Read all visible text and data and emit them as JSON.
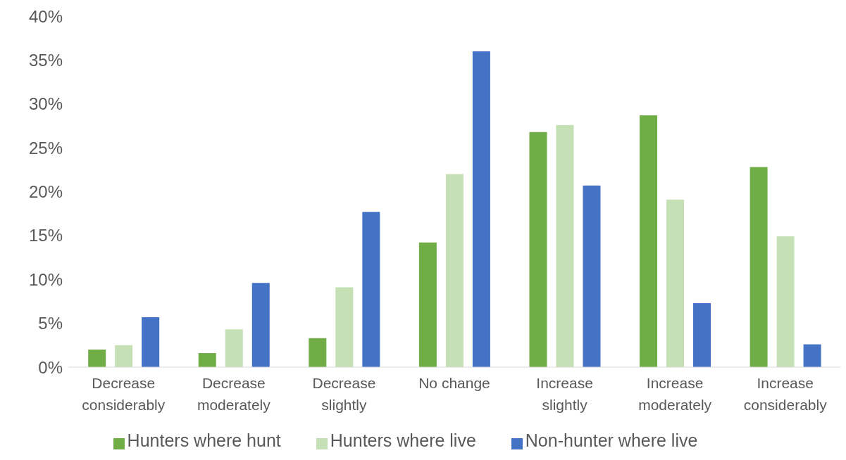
{
  "chart_data": {
    "type": "bar",
    "categories": [
      "Decrease considerably",
      "Decrease moderately",
      "Decrease slightly",
      "No change",
      "Increase slightly",
      "Increase moderately",
      "Increase considerably"
    ],
    "series": [
      {
        "name": "Hunters where hunt",
        "color": "#70ad47",
        "values": [
          2.0,
          1.6,
          3.3,
          14.2,
          26.8,
          28.7,
          22.8
        ]
      },
      {
        "name": "Hunters where live",
        "color": "#c5e0b4",
        "values": [
          2.5,
          4.3,
          9.1,
          22.0,
          27.6,
          19.1,
          14.9
        ]
      },
      {
        "name": "Non-hunter where live",
        "color": "#4472c4",
        "values": [
          5.7,
          9.6,
          17.7,
          36.0,
          20.7,
          7.3,
          2.6
        ]
      }
    ],
    "ylim": [
      0,
      40
    ],
    "yticks": [
      {
        "value": 0,
        "label": "0%"
      },
      {
        "value": 5,
        "label": "5%"
      },
      {
        "value": 10,
        "label": "10%"
      },
      {
        "value": 15,
        "label": "15%"
      },
      {
        "value": 20,
        "label": "20%"
      },
      {
        "value": 25,
        "label": "25%"
      },
      {
        "value": 30,
        "label": "30%"
      },
      {
        "value": 35,
        "label": "35%"
      },
      {
        "value": 40,
        "label": "40%"
      }
    ],
    "grid": false,
    "legend": "bottom"
  }
}
